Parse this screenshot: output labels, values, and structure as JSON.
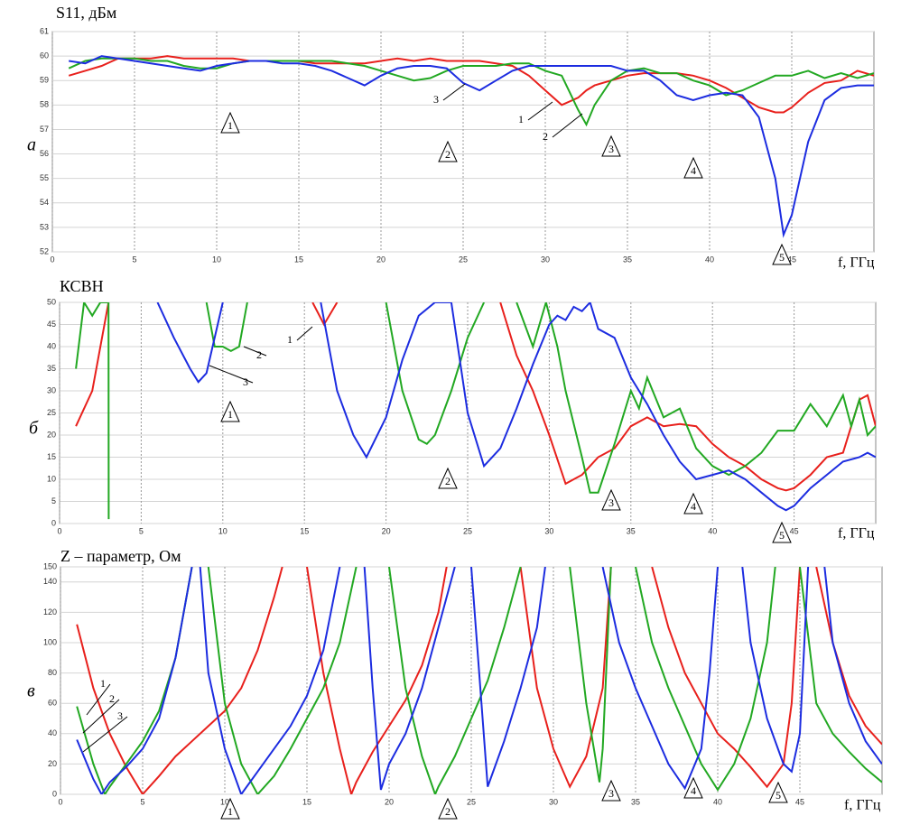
{
  "chart_data": [
    {
      "type": "line",
      "title": "S11, дБм",
      "panel_label": "а",
      "xlabel": "f, ГГц",
      "xlim": [
        0,
        50
      ],
      "ylim": [
        52,
        61
      ],
      "xticks": [
        0,
        5,
        10,
        15,
        20,
        25,
        30,
        35,
        40,
        45
      ],
      "yticks": [
        52,
        53,
        54,
        55,
        56,
        57,
        58,
        59,
        60,
        61
      ],
      "grid": true,
      "markers": [
        "1",
        "2",
        "3",
        "4",
        "5"
      ],
      "x": [
        1,
        2,
        3,
        4,
        5,
        6,
        7,
        8,
        9,
        10,
        11,
        12,
        13,
        14,
        15,
        16,
        17,
        18,
        19,
        20,
        21,
        22,
        23,
        24,
        25,
        26,
        27,
        28,
        29,
        30,
        31,
        32,
        32.5,
        33,
        34,
        35,
        36,
        37,
        38,
        39,
        40,
        41,
        42,
        43,
        44,
        44.5,
        45,
        46,
        47,
        48,
        49,
        50
      ],
      "series": [
        {
          "name": "1",
          "color": "#e8201c",
          "values": [
            59.2,
            59.4,
            59.6,
            59.9,
            59.9,
            59.9,
            60.0,
            59.9,
            59.9,
            59.9,
            59.9,
            59.8,
            59.8,
            59.8,
            59.8,
            59.7,
            59.7,
            59.7,
            59.7,
            59.8,
            59.9,
            59.8,
            59.9,
            59.8,
            59.8,
            59.8,
            59.7,
            59.6,
            59.2,
            58.6,
            58.0,
            58.3,
            58.6,
            58.8,
            59.0,
            59.2,
            59.3,
            59.3,
            59.3,
            59.2,
            59.0,
            58.7,
            58.3,
            57.9,
            57.7,
            57.7,
            57.9,
            58.5,
            58.9,
            59.0,
            59.4,
            59.2
          ]
        },
        {
          "name": "2",
          "color": "#22a822",
          "values": [
            59.5,
            59.8,
            59.9,
            59.9,
            59.9,
            59.8,
            59.8,
            59.6,
            59.5,
            59.5,
            59.7,
            59.8,
            59.8,
            59.8,
            59.8,
            59.8,
            59.8,
            59.7,
            59.6,
            59.4,
            59.2,
            59.0,
            59.1,
            59.4,
            59.6,
            59.6,
            59.6,
            59.7,
            59.7,
            59.4,
            59.2,
            57.8,
            57.2,
            58.0,
            59.0,
            59.4,
            59.5,
            59.3,
            59.3,
            59.0,
            58.8,
            58.4,
            58.6,
            58.9,
            59.2,
            59.2,
            59.2,
            59.4,
            59.1,
            59.3,
            59.1,
            59.3
          ]
        },
        {
          "name": "3",
          "color": "#1c2ce0",
          "values": [
            59.8,
            59.7,
            60.0,
            59.9,
            59.8,
            59.7,
            59.6,
            59.5,
            59.4,
            59.6,
            59.7,
            59.8,
            59.8,
            59.7,
            59.7,
            59.6,
            59.4,
            59.1,
            58.8,
            59.2,
            59.5,
            59.6,
            59.6,
            59.5,
            58.9,
            58.6,
            59.0,
            59.4,
            59.6,
            59.6,
            59.6,
            59.6,
            59.6,
            59.6,
            59.6,
            59.4,
            59.4,
            59.0,
            58.4,
            58.2,
            58.4,
            58.5,
            58.4,
            57.5,
            55.0,
            52.7,
            53.5,
            56.5,
            58.2,
            58.7,
            58.8,
            58.8
          ]
        }
      ]
    },
    {
      "type": "line",
      "title": "КСВН",
      "panel_label": "б",
      "xlabel": "f, ГГц",
      "xlim": [
        0,
        50
      ],
      "ylim": [
        0,
        50
      ],
      "xticks": [
        0,
        5,
        10,
        15,
        20,
        25,
        30,
        35,
        40,
        45
      ],
      "yticks": [
        0,
        5,
        10,
        15,
        20,
        25,
        30,
        35,
        40,
        45,
        50
      ],
      "grid": true,
      "markers": [
        "1",
        "2",
        "3",
        "4",
        "5"
      ],
      "series": [
        {
          "name": "1",
          "color": "#e8201c",
          "x": [
            1,
            2,
            3,
            3.3,
            15.5,
            16.2,
            17,
            17.5,
            27,
            28,
            29,
            30,
            31,
            32,
            33,
            34,
            35,
            36,
            37,
            38,
            39,
            40,
            41,
            42,
            43,
            44,
            44.5,
            45,
            46,
            47,
            48,
            49,
            49.5,
            50
          ],
          "values": [
            22,
            30,
            50,
            null,
            50,
            45,
            50,
            null,
            50,
            38,
            30,
            20,
            9,
            11,
            15,
            17,
            22,
            24,
            22,
            22.5,
            22,
            18,
            15,
            13,
            10,
            8,
            7.5,
            8,
            11,
            15,
            16,
            28,
            29,
            22
          ]
        },
        {
          "name": "2",
          "color": "#22a822",
          "x": [
            1,
            1.5,
            2,
            2.5,
            3,
            3.01,
            3.5,
            9,
            9.5,
            10,
            10.5,
            11,
            11.5,
            12,
            20,
            21,
            22,
            22.5,
            23,
            24,
            25,
            26,
            26.5,
            28,
            29,
            29.8,
            30.5,
            31,
            32,
            32.5,
            33,
            34,
            35,
            35.5,
            36,
            37,
            38,
            39,
            40,
            41,
            42,
            43,
            44,
            45,
            46,
            47,
            48,
            48.5,
            49,
            49.5,
            50
          ],
          "values": [
            35,
            50,
            47,
            50,
            50,
            1,
            null,
            50,
            40,
            40,
            39,
            40,
            50,
            null,
            50,
            30,
            19,
            18,
            20,
            30,
            42,
            50,
            null,
            50,
            40,
            50,
            40,
            30,
            15,
            7,
            7,
            18,
            30,
            26,
            33,
            24,
            26,
            17,
            13,
            11,
            13,
            16,
            21,
            21,
            27,
            22,
            29,
            22,
            28,
            20,
            22
          ]
        },
        {
          "name": "3",
          "color": "#1c2ce0",
          "x": [
            6,
            7,
            8,
            8.5,
            9,
            10,
            10.5,
            16,
            17,
            18,
            18.8,
            20,
            21,
            22,
            23,
            24,
            25,
            26,
            27,
            28,
            29,
            30,
            30.5,
            31,
            31.5,
            32,
            32.5,
            33,
            34,
            35,
            36,
            37,
            38,
            39,
            40,
            41,
            42,
            43,
            44,
            44.5,
            45,
            46,
            47,
            48,
            49,
            49.5,
            50
          ],
          "values": [
            50,
            42,
            35,
            32,
            34,
            50,
            null,
            50,
            30,
            20,
            15,
            24,
            37,
            47,
            50,
            50,
            25,
            13,
            17,
            26,
            36,
            45,
            47,
            46,
            49,
            48,
            50,
            44,
            42,
            33,
            27,
            20,
            14,
            10,
            11,
            12,
            10,
            7,
            4,
            3,
            4,
            8,
            11,
            14,
            15,
            16,
            15
          ]
        }
      ]
    },
    {
      "type": "line",
      "title": "Z – параметр, Ом",
      "panel_label": "в",
      "xlabel": "f, ГГц",
      "xlim": [
        0,
        50
      ],
      "ylim": [
        0,
        150
      ],
      "xticks": [
        0,
        5,
        10,
        15,
        20,
        25,
        30,
        35,
        40,
        45
      ],
      "yticks": [
        0,
        20,
        40,
        60,
        80,
        100,
        120,
        140,
        150
      ],
      "grid": true,
      "markers": [
        "1",
        "2",
        "3",
        "4",
        "5"
      ],
      "series": [
        {
          "name": "1",
          "color": "#e8201c",
          "x": [
            1,
            2,
            3,
            4,
            5,
            6,
            7,
            8,
            9,
            10,
            11,
            12,
            13,
            13.5,
            14,
            15,
            16,
            17,
            17.7,
            18,
            19,
            20,
            21,
            22,
            23,
            23.5,
            25,
            28,
            29,
            30,
            31,
            32,
            33,
            33.5,
            34,
            36,
            37,
            38,
            39,
            40,
            41,
            42,
            43,
            44,
            44.5,
            45,
            45.5,
            46,
            47,
            48,
            49,
            50
          ],
          "values": [
            112,
            70,
            40,
            18,
            0,
            12,
            25,
            35,
            45,
            55,
            70,
            95,
            130,
            150,
            null,
            150,
            80,
            30,
            0,
            8,
            28,
            45,
            62,
            85,
            120,
            150,
            null,
            150,
            70,
            30,
            5,
            25,
            70,
            150,
            null,
            150,
            110,
            80,
            60,
            40,
            30,
            18,
            5,
            20,
            60,
            150,
            null,
            150,
            100,
            65,
            45,
            33
          ]
        },
        {
          "name": "2",
          "color": "#22a822",
          "x": [
            1,
            2,
            2.7,
            3,
            4,
            5,
            6,
            7,
            8,
            8.5,
            9,
            10,
            11,
            12,
            13,
            14,
            15,
            16,
            17,
            18,
            19,
            20,
            21,
            22,
            22.8,
            23,
            24,
            25,
            26,
            27,
            28,
            29.5,
            31,
            32,
            32.8,
            33,
            33.5,
            34,
            35,
            36,
            37,
            38,
            39,
            40,
            41,
            42,
            43,
            43.5,
            44,
            45,
            46,
            47,
            48,
            49,
            50
          ],
          "values": [
            58,
            20,
            0,
            5,
            20,
            35,
            55,
            90,
            150,
            null,
            150,
            60,
            20,
            0,
            12,
            30,
            50,
            70,
            100,
            150,
            null,
            150,
            70,
            25,
            0,
            5,
            25,
            50,
            75,
            110,
            150,
            null,
            150,
            60,
            8,
            30,
            150,
            null,
            150,
            100,
            70,
            45,
            20,
            3,
            20,
            50,
            100,
            150,
            null,
            150,
            60,
            40,
            28,
            17,
            8
          ]
        },
        {
          "name": "3",
          "color": "#1c2ce0",
          "x": [
            1,
            2,
            2.5,
            3,
            4,
            5,
            6,
            7,
            8,
            8.3,
            8.5,
            9,
            10,
            11,
            12,
            13,
            14,
            15,
            16,
            17,
            18,
            18.5,
            19,
            19.5,
            20,
            21,
            22,
            23,
            24,
            24.5,
            25,
            26,
            27,
            28,
            29,
            29.5,
            31,
            33,
            34,
            35,
            36,
            37,
            38,
            39,
            39.5,
            40,
            41,
            41.5,
            42,
            43,
            44,
            44.5,
            45,
            45.5,
            46,
            46.5,
            47,
            48,
            49,
            50
          ],
          "values": [
            36,
            10,
            0,
            8,
            18,
            30,
            50,
            90,
            150,
            null,
            150,
            80,
            30,
            0,
            15,
            30,
            45,
            65,
            95,
            150,
            null,
            150,
            70,
            3,
            20,
            40,
            70,
            110,
            150,
            null,
            150,
            5,
            35,
            70,
            110,
            150,
            null,
            150,
            100,
            70,
            45,
            20,
            4,
            30,
            80,
            150,
            null,
            150,
            100,
            50,
            20,
            15,
            40,
            150,
            null,
            150,
            100,
            60,
            35,
            20
          ]
        }
      ]
    }
  ]
}
